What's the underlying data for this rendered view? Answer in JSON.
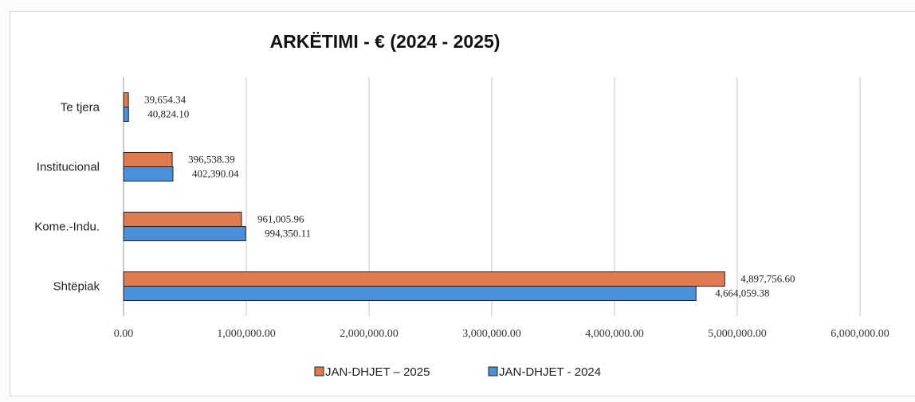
{
  "colors": {
    "series_2025": "#e07b4f",
    "series_2024": "#4a90d9",
    "gridline": "#c7c7c7",
    "bar_outline": "#222222"
  },
  "chart_data": {
    "type": "bar",
    "orientation": "horizontal",
    "title": "ARKËTIMI - € (2024 - 2025)",
    "xlabel": "",
    "ylabel": "",
    "categories": [
      "Te tjera",
      "Institucional",
      "Kome.-Indu.",
      "Shtëpiak"
    ],
    "series": [
      {
        "name": "JAN-DHJET – 2025",
        "values": [
          39654.34,
          396538.39,
          961005.96,
          4897756.6
        ],
        "labels": [
          "39,654.34",
          "396,538.39",
          "961,005.96",
          "4,897,756.60"
        ],
        "color": "#e07b4f"
      },
      {
        "name": "JAN-DHJET - 2024",
        "values": [
          40824.1,
          402390.04,
          994350.11,
          4664059.38
        ],
        "labels": [
          "40,824.10",
          "402,390.04",
          "994,350.11",
          "4,664,059.38"
        ],
        "color": "#4a90d9"
      }
    ],
    "xlim": [
      0,
      6000000
    ],
    "xticks": [
      0,
      1000000,
      2000000,
      3000000,
      4000000,
      5000000,
      6000000
    ],
    "xtick_labels": [
      "0.00",
      "1,000,000.00",
      "2,000,000.00",
      "3,000,000.00",
      "4,000,000.00",
      "5,000,000.00",
      "6,000,000.00"
    ],
    "grid": "vertical",
    "legend_position": "bottom"
  }
}
